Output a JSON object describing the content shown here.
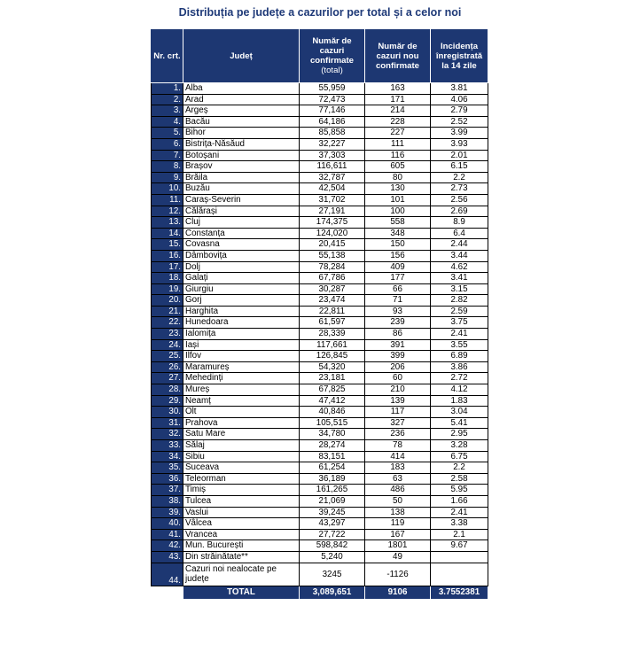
{
  "title": "Distribuția pe județe a cazurilor per total și a celor noi",
  "headers": {
    "nr": "Nr. crt.",
    "judet": "Județ",
    "total": "Număr de cazuri confirmate",
    "total_sub": "(total)",
    "noi": "Număr de cazuri nou confirmate",
    "incidenta": "Incidența înregistrată la 14 zile"
  },
  "rows": [
    {
      "nr": "1.",
      "judet": "Alba",
      "total": "55,959",
      "noi": "163",
      "inc": "3.81"
    },
    {
      "nr": "2.",
      "judet": "Arad",
      "total": "72,473",
      "noi": "171",
      "inc": "4.06"
    },
    {
      "nr": "3.",
      "judet": "Argeș",
      "total": "77,146",
      "noi": "214",
      "inc": "2.79"
    },
    {
      "nr": "4.",
      "judet": "Bacău",
      "total": "64,186",
      "noi": "228",
      "inc": "2.52"
    },
    {
      "nr": "5.",
      "judet": "Bihor",
      "total": "85,858",
      "noi": "227",
      "inc": "3.99"
    },
    {
      "nr": "6.",
      "judet": "Bistrița-Năsăud",
      "total": "32,227",
      "noi": "111",
      "inc": "3.93"
    },
    {
      "nr": "7.",
      "judet": "Botoșani",
      "total": "37,303",
      "noi": "116",
      "inc": "2.01"
    },
    {
      "nr": "8.",
      "judet": "Brașov",
      "total": "116,611",
      "noi": "605",
      "inc": "6.15"
    },
    {
      "nr": "9.",
      "judet": "Brăila",
      "total": "32,787",
      "noi": "80",
      "inc": "2.2"
    },
    {
      "nr": "10.",
      "judet": "Buzău",
      "total": "42,504",
      "noi": "130",
      "inc": "2.73"
    },
    {
      "nr": "11.",
      "judet": "Caraș-Severin",
      "total": "31,702",
      "noi": "101",
      "inc": "2.56"
    },
    {
      "nr": "12.",
      "judet": "Călărași",
      "total": "27,191",
      "noi": "100",
      "inc": "2.69"
    },
    {
      "nr": "13.",
      "judet": "Cluj",
      "total": "174,375",
      "noi": "558",
      "inc": "8.9"
    },
    {
      "nr": "14.",
      "judet": "Constanța",
      "total": "124,020",
      "noi": "348",
      "inc": "6.4"
    },
    {
      "nr": "15.",
      "judet": "Covasna",
      "total": "20,415",
      "noi": "150",
      "inc": "2.44"
    },
    {
      "nr": "16.",
      "judet": "Dâmbovița",
      "total": "55,138",
      "noi": "156",
      "inc": "3.44"
    },
    {
      "nr": "17.",
      "judet": "Dolj",
      "total": "78,284",
      "noi": "409",
      "inc": "4.62"
    },
    {
      "nr": "18.",
      "judet": "Galați",
      "total": "67,786",
      "noi": "177",
      "inc": "3.41"
    },
    {
      "nr": "19.",
      "judet": "Giurgiu",
      "total": "30,287",
      "noi": "66",
      "inc": "3.15"
    },
    {
      "nr": "20.",
      "judet": "Gorj",
      "total": "23,474",
      "noi": "71",
      "inc": "2.82"
    },
    {
      "nr": "21.",
      "judet": "Harghita",
      "total": "22,811",
      "noi": "93",
      "inc": "2.59"
    },
    {
      "nr": "22.",
      "judet": "Hunedoara",
      "total": "61,597",
      "noi": "239",
      "inc": "3.75"
    },
    {
      "nr": "23.",
      "judet": "Ialomița",
      "total": "28,339",
      "noi": "86",
      "inc": "2.41"
    },
    {
      "nr": "24.",
      "judet": "Iași",
      "total": "117,661",
      "noi": "391",
      "inc": "3.55"
    },
    {
      "nr": "25.",
      "judet": "Ilfov",
      "total": "126,845",
      "noi": "399",
      "inc": "6.89"
    },
    {
      "nr": "26.",
      "judet": "Maramureș",
      "total": "54,320",
      "noi": "206",
      "inc": "3.86"
    },
    {
      "nr": "27.",
      "judet": "Mehedinți",
      "total": "23,181",
      "noi": "60",
      "inc": "2.72"
    },
    {
      "nr": "28.",
      "judet": "Mureș",
      "total": "67,825",
      "noi": "210",
      "inc": "4.12"
    },
    {
      "nr": "29.",
      "judet": "Neamț",
      "total": "47,412",
      "noi": "139",
      "inc": "1.83"
    },
    {
      "nr": "30.",
      "judet": "Olt",
      "total": "40,846",
      "noi": "117",
      "inc": "3.04"
    },
    {
      "nr": "31.",
      "judet": "Prahova",
      "total": "105,515",
      "noi": "327",
      "inc": "5.41"
    },
    {
      "nr": "32.",
      "judet": "Satu Mare",
      "total": "34,780",
      "noi": "236",
      "inc": "2.95"
    },
    {
      "nr": "33.",
      "judet": "Sălaj",
      "total": "28,274",
      "noi": "78",
      "inc": "3.28"
    },
    {
      "nr": "34.",
      "judet": "Sibiu",
      "total": "83,151",
      "noi": "414",
      "inc": "6.75"
    },
    {
      "nr": "35.",
      "judet": "Suceava",
      "total": "61,254",
      "noi": "183",
      "inc": "2.2"
    },
    {
      "nr": "36.",
      "judet": "Teleorman",
      "total": "36,189",
      "noi": "63",
      "inc": "2.58"
    },
    {
      "nr": "37.",
      "judet": "Timiș",
      "total": "161,265",
      "noi": "486",
      "inc": "5.95"
    },
    {
      "nr": "38.",
      "judet": "Tulcea",
      "total": "21,069",
      "noi": "50",
      "inc": "1.66"
    },
    {
      "nr": "39.",
      "judet": "Vaslui",
      "total": "39,245",
      "noi": "138",
      "inc": "2.41"
    },
    {
      "nr": "40.",
      "judet": "Vâlcea",
      "total": "43,297",
      "noi": "119",
      "inc": "3.38"
    },
    {
      "nr": "41.",
      "judet": "Vrancea",
      "total": "27,722",
      "noi": "167",
      "inc": "2.1"
    },
    {
      "nr": "42.",
      "judet": "Mun. București",
      "total": "598,842",
      "noi": "1801",
      "inc": "9.67"
    },
    {
      "nr": "43.",
      "judet": "Din străinătate**",
      "total": "5,240",
      "noi": "49",
      "inc": ""
    },
    {
      "nr": "44.",
      "judet": "Cazuri noi nealocate pe județe",
      "total": "3245",
      "noi": "-1126",
      "inc": ""
    }
  ],
  "total_row": {
    "label": "TOTAL",
    "total": "3,089,651",
    "noi": "9106",
    "inc": "3.7552381"
  }
}
